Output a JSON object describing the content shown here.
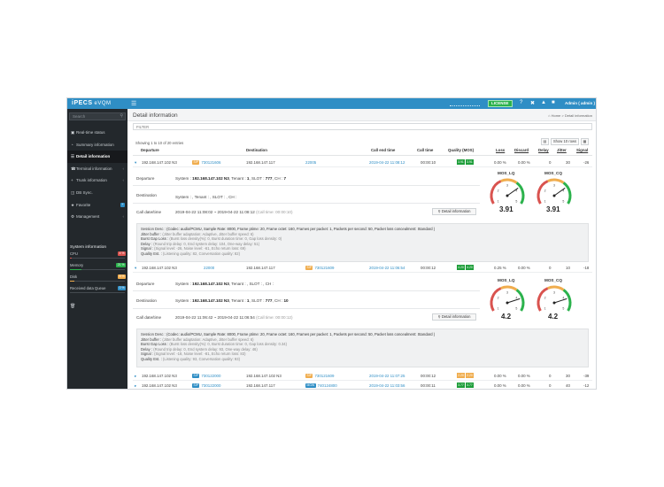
{
  "header": {
    "logo": "iPECS",
    "product": "eVQM",
    "menu_icon": "hamburger-icon",
    "license_label": "LICENSE",
    "user_label": "Admin ( admin )",
    "colors": {
      "header_bg": "#2f8ec5",
      "license_bg": "#2bb24c"
    }
  },
  "sidebar": {
    "search_placeholder": "Search",
    "items": [
      {
        "label": "Real-time status",
        "icon": "monitor-icon"
      },
      {
        "label": "Summary information",
        "icon": "pie-icon"
      },
      {
        "label": "Detail information",
        "icon": "list-icon"
      },
      {
        "label": "Terminal information",
        "icon": "phone-icon"
      },
      {
        "label": "Trunk information",
        "icon": "plus-icon"
      },
      {
        "label": "DB Sync.",
        "icon": "database-icon"
      },
      {
        "label": "Favorite",
        "icon": "star-icon"
      },
      {
        "label": "Management",
        "icon": "gear-icon"
      }
    ],
    "system_info": {
      "title": "System information",
      "items": [
        {
          "label": "CPU",
          "badge": "4 %",
          "value": 0.04,
          "color": "#d9534f"
        },
        {
          "label": "Memory",
          "badge": "21 %",
          "value": 0.21,
          "color": "#2bb24c"
        },
        {
          "label": "Disk",
          "badge": "8 %",
          "value": 0.08,
          "color": "#f0ad4e"
        },
        {
          "label": "Received data Queue",
          "badge": "0 %",
          "value": 0.0,
          "color": "#2f8ec5"
        }
      ]
    }
  },
  "main": {
    "page_title": "Detail information",
    "breadcrumb": {
      "home": "Home",
      "current": "Detail information"
    },
    "filter_placeholder": "FILTER",
    "showing": "Showing 1 to 10 of 20 entries",
    "show_rows": "Show 10 rows",
    "columns": [
      "Departure",
      "Destination",
      "Call end time",
      "Call time",
      "Quality (MOS)",
      "Loss",
      "Discard",
      "Delay",
      "Jitter",
      "Signal"
    ],
    "rows": [
      {
        "dep_num": "192.168.147.102 N3",
        "dest_tag": "SIP",
        "dest_num": "730121606",
        "dest2": "192.168.147.117",
        "dest2_ext": "22005",
        "end_time": "2019-04-22 11:08:12",
        "call_time": "00:00:10",
        "mos": [
          "3.91",
          "3.91"
        ],
        "loss": "0.00 %",
        "discard": "0.00 %",
        "delay": "0",
        "jitter": "30",
        "signal": "-26"
      },
      {
        "dep_num": "192.168.147.102 N3",
        "dest_tag": "",
        "dest_num": "22000",
        "dest2": "192.168.147.117",
        "dest2_tag": "SIP",
        "dest2_ext": "730121609",
        "end_time": "2019-04-22 11:06:54",
        "call_time": "00:00:12",
        "mos": [
          "4.20",
          "4.20"
        ],
        "loss": "0.25 %",
        "discard": "0.00 %",
        "delay": "0",
        "jitter": "10",
        "signal": "-18"
      },
      {
        "dep_num": "192.168.147.102 N3",
        "dest_tag": "SIP",
        "dest_num": "730122000",
        "dest2": "192.168.147.102 N3",
        "dest2_tag": "SIP",
        "dest2_ext": "730121609",
        "end_time": "2019-04-22 11:07:25",
        "call_time": "00:00:12",
        "mos": [
          "2.20",
          "2.20"
        ],
        "loss": "0.00 %",
        "discard": "0.00 %",
        "delay": "0",
        "jitter": "30",
        "signal": "-39"
      },
      {
        "dep_num": "192.168.147.102 N3",
        "dest_tag": "SIP",
        "dest_num": "730122000",
        "dest2": "192.168.147.117",
        "dest2_tag": "MGW",
        "dest2_ext": "740124800",
        "end_time": "2019-04-22 11:03:56",
        "call_time": "00:00:11",
        "mos": [
          "3.77",
          "3.77"
        ],
        "loss": "0.00 %",
        "discard": "0.00 %",
        "delay": "0",
        "jitter": "40",
        "signal": "-12"
      }
    ],
    "details": [
      {
        "departure_label": "Departure",
        "departure_pre": "System :",
        "departure_ip": "192.168.147.102 N3",
        "departure_mid": ", Tenant :",
        "departure_tenant": "1",
        "departure_slot_pre": ", SLOT :",
        "departure_slot": "777",
        "departure_ch_pre": ", CH :",
        "departure_ch": "7",
        "destination_label": "Destination",
        "destination_text": "System : , Tenant : , SLOT : , CH :",
        "calldt_label": "Call date/time",
        "calldt_text": "2019-04-22 11:08:02 ~ 2019-04-22 11:08:12",
        "calldt_muted": "(Call time: 00:00:10)",
        "detail_btn": "Detail information",
        "gauges": [
          {
            "title": "MOS_LQ",
            "value": "3.91",
            "mos": 3.91
          },
          {
            "title": "MOS_CQ",
            "value": "3.91",
            "mos": 3.91
          }
        ],
        "session": [
          [
            "Session Desc :",
            "(Codec: audio/PCMU, Sample Rate: 8000, Frame ptime: 20, Frame octet: 160, Frames per packet: 1, Packets per second: 50, Packet loss concealment: Standard )"
          ],
          [
            "Jitter buffer :",
            "(Jitter buffer adaptation: Adaptive, Jitter buffer speed: 6)"
          ],
          [
            "Burst Gap Loss :",
            "(Burst loss density(%): 0, Burst duration time: 0, Gap loss density: 0)"
          ],
          [
            "Delay :",
            "(Round trip delay: 0, End system delay: 104, One-way delay: 51)"
          ],
          [
            "Signal :",
            "(Signal level: -26, Noise level: -61, Echo return loss: 69)"
          ],
          [
            "Quality Est. :",
            "(Listening quality: 82, Conversation quality: 82)"
          ]
        ]
      },
      {
        "departure_label": "Departure",
        "departure_pre": "System :",
        "departure_ip": "192.168.147.102 N3",
        "departure_rest": ", Tenant : , SLOT : , CH :",
        "destination_label": "Destination",
        "destination_pre": "System :",
        "destination_ip": "192.168.147.102 N3",
        "destination_mid": ", Tenant :",
        "destination_tenant": "1",
        "destination_slot_pre": ", SLOT :",
        "destination_slot": "777",
        "destination_ch_pre": ", CH :",
        "destination_ch": "10",
        "calldt_label": "Call date/time",
        "calldt_text": "2019-04-22 11:06:42 ~ 2019-04-22 11:06:54",
        "calldt_muted": "(Call time: 00:00:12)",
        "detail_btn": "Detail information",
        "gauges": [
          {
            "title": "MOS_LQ",
            "value": "4.2",
            "mos": 4.2
          },
          {
            "title": "MOS_CQ",
            "value": "4.2",
            "mos": 4.2
          }
        ],
        "session": [
          [
            "Session Desc :",
            "(Codec: audio/PCMU, Sample Rate: 8000, Frame ptime: 20, Frame octet: 160, Frames per packet: 1, Packets per second: 50, Packet loss concealment: Standard )"
          ],
          [
            "Jitter buffer :",
            "(Jitter buffer adaptation: Adaptive, Jitter buffer speed: 6)"
          ],
          [
            "Burst Gap Loss :",
            "(Burst loss density(%): 0, Burst duration time: 0, Gap loss density: 0.34)"
          ],
          [
            "Delay :",
            "(Round trip delay: 0, End system delay: 93, One-way delay: 46)"
          ],
          [
            "Signal :",
            "(Signal level: -18, Noise level: -81, Echo return loss: 83)"
          ],
          [
            "Quality Est. :",
            "(Listening quality: 93, Conversation quality: 93)"
          ]
        ]
      }
    ]
  }
}
